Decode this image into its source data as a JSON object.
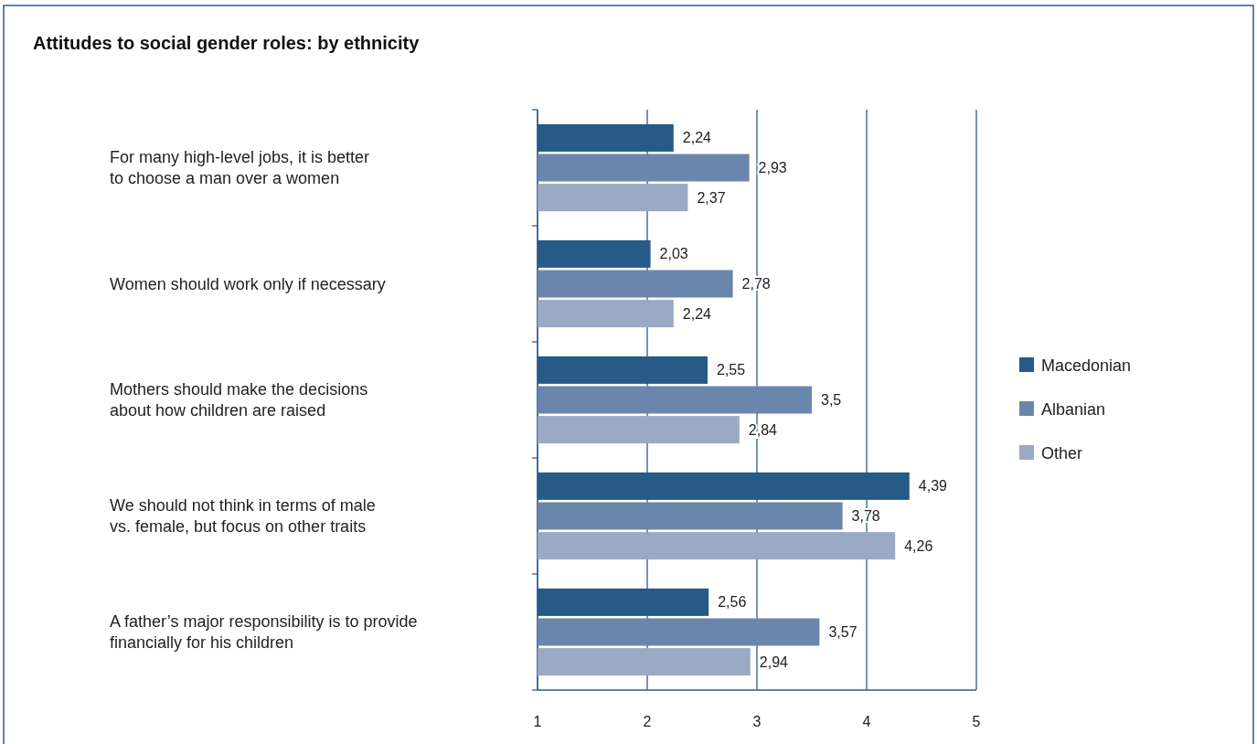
{
  "chart_data": {
    "type": "bar",
    "orientation": "horizontal",
    "title": "Attitudes to social gender roles: by ethnicity",
    "categories": [
      "For many high-level jobs, it is better\nto choose a man over a women",
      "Women should work only if necessary",
      "Mothers should make the decisions\nabout how children are raised",
      "We should not think in terms of male\nvs. female, but focus on other traits",
      "A father’s major responsibility is to provide\nfinancially for his children"
    ],
    "series": [
      {
        "name": "Macedonian",
        "color": "#265a87",
        "values": [
          2.24,
          2.03,
          2.55,
          4.39,
          2.56
        ],
        "value_labels": [
          "2,24",
          "2,03",
          "2,55",
          "4,39",
          "2,56"
        ]
      },
      {
        "name": "Albanian",
        "color": "#6b86ad",
        "values": [
          2.93,
          2.78,
          3.5,
          3.78,
          3.57
        ],
        "value_labels": [
          "2,93",
          "2,78",
          "3,5",
          "3,78",
          "3,57"
        ]
      },
      {
        "name": "Other",
        "color": "#9aaac5",
        "values": [
          2.37,
          2.24,
          2.84,
          4.26,
          2.94
        ],
        "value_labels": [
          "2,37",
          "2,24",
          "2,84",
          "4,26",
          "2,94"
        ]
      }
    ],
    "xlim": [
      1,
      5
    ],
    "xticks": [
      1,
      2,
      3,
      4,
      5
    ],
    "grid": "x",
    "legend": "right"
  }
}
